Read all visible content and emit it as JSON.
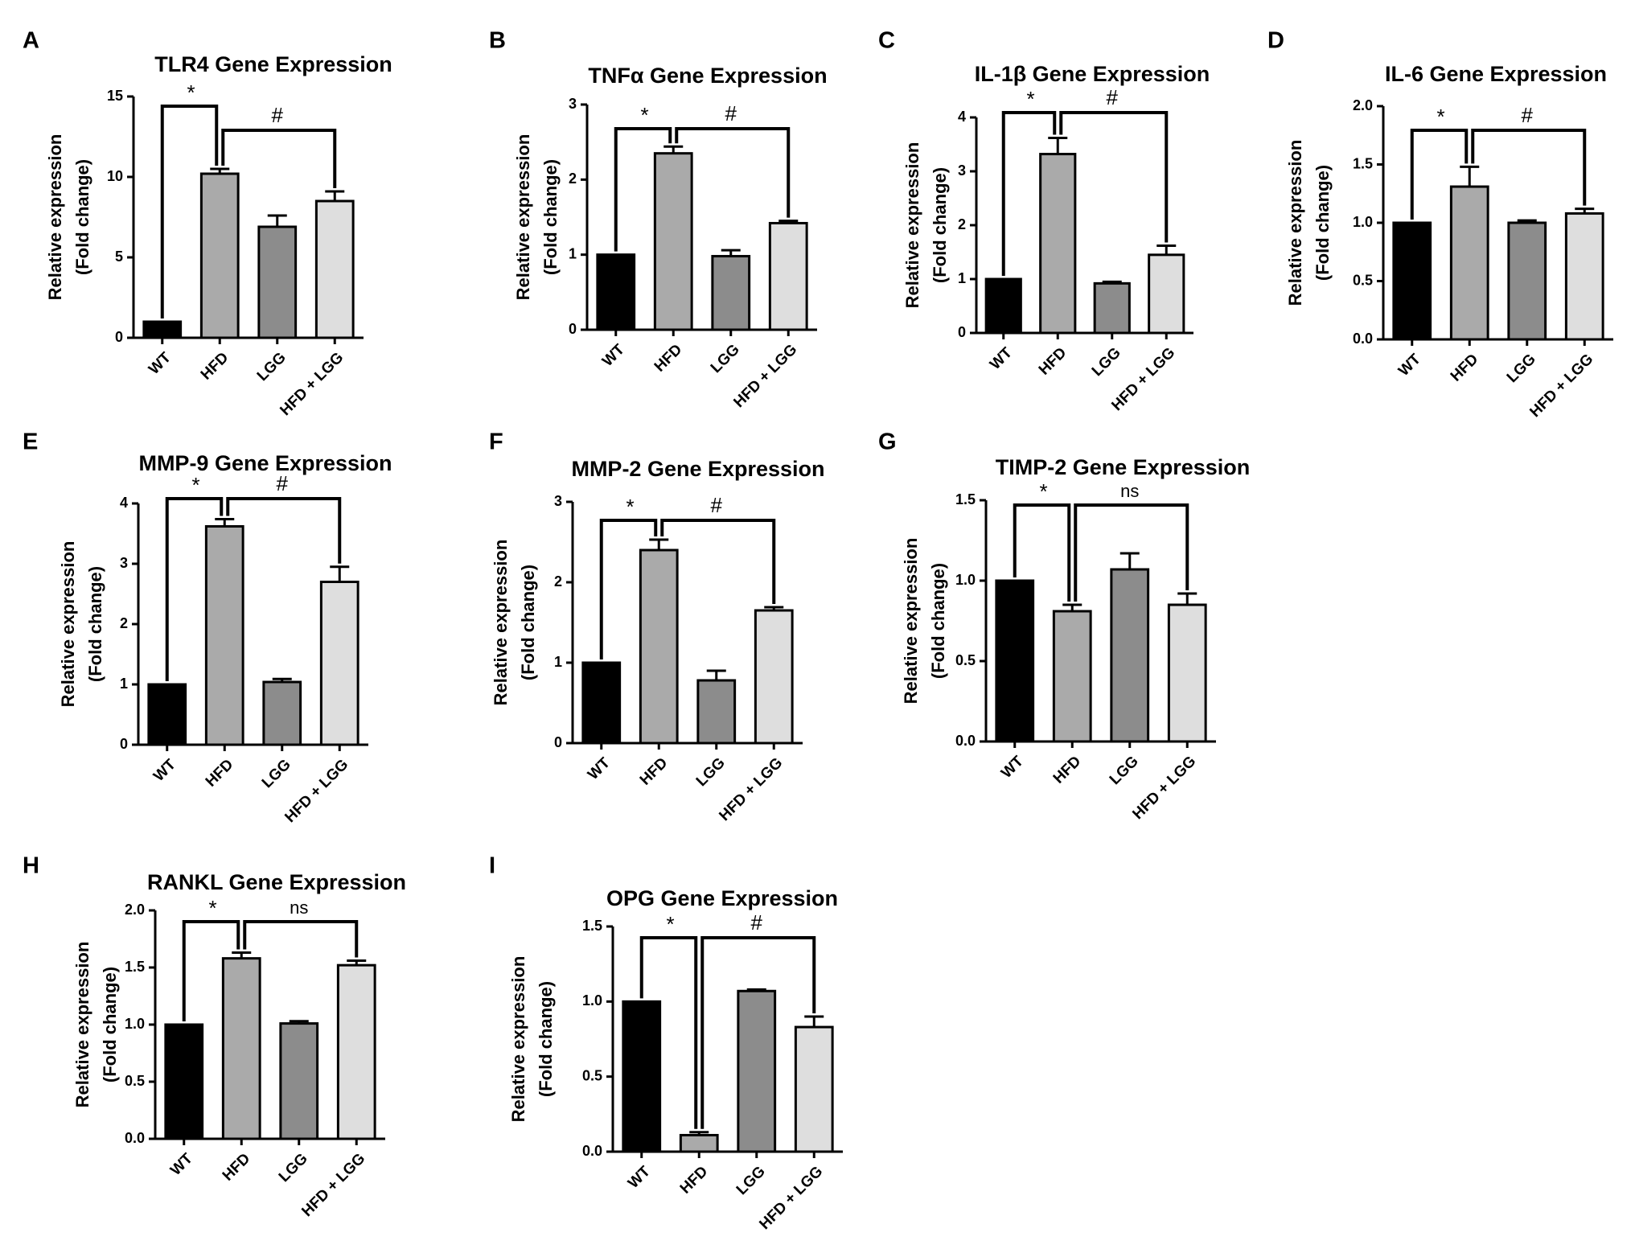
{
  "figure": {
    "categories": [
      "WT",
      "HFD",
      "LGG",
      "HFD + LGG"
    ],
    "bar_colors": [
      "#000000",
      "#aaaaaa",
      "#8c8c8c",
      "#dedede"
    ]
  },
  "chart_data": [
    {
      "panel": "A",
      "type": "bar",
      "title": "TLR4 Gene Expression",
      "ylabel": [
        "Relative expression",
        "(Fold change)"
      ],
      "categories": [
        "WT",
        "HFD",
        "LGG",
        "HFD + LGG"
      ],
      "values": [
        1.0,
        10.2,
        6.9,
        8.5
      ],
      "errors": [
        0,
        0.3,
        0.7,
        0.6
      ],
      "ylim": [
        0,
        15
      ],
      "yticks": [
        "0",
        "5",
        "10",
        "15"
      ],
      "annotations": [
        "*",
        "#"
      ]
    },
    {
      "panel": "B",
      "type": "bar",
      "title": "TNFα Gene Expression",
      "ylabel": [
        "Relative expression",
        "(Fold change)"
      ],
      "categories": [
        "WT",
        "HFD",
        "LGG",
        "HFD + LGG"
      ],
      "values": [
        1.0,
        2.35,
        0.98,
        1.42
      ],
      "errors": [
        0,
        0.09,
        0.08,
        0.03
      ],
      "ylim": [
        0,
        3
      ],
      "yticks": [
        "0",
        "1",
        "2",
        "3"
      ],
      "annotations": [
        "*",
        "#"
      ]
    },
    {
      "panel": "C",
      "type": "bar",
      "title": "IL-1β Gene Expression",
      "ylabel": [
        "Relative expression",
        "(Fold change)"
      ],
      "categories": [
        "WT",
        "HFD",
        "LGG",
        "HFD + LGG"
      ],
      "values": [
        1.0,
        3.32,
        0.92,
        1.45
      ],
      "errors": [
        0,
        0.3,
        0.03,
        0.17
      ],
      "ylim": [
        0,
        4
      ],
      "yticks": [
        "0",
        "1",
        "2",
        "3",
        "4"
      ],
      "annotations": [
        "*",
        "#"
      ]
    },
    {
      "panel": "D",
      "type": "bar",
      "title": "IL-6 Gene Expression",
      "ylabel": [
        "Relative expression",
        "(Fold change)"
      ],
      "categories": [
        "WT",
        "HFD",
        "LGG",
        "HFD + LGG"
      ],
      "values": [
        1.0,
        1.31,
        1.0,
        1.08
      ],
      "errors": [
        0,
        0.17,
        0.02,
        0.04
      ],
      "ylim": [
        0,
        2
      ],
      "yticks": [
        "0.0",
        "0.5",
        "1.0",
        "1.5",
        "2.0"
      ],
      "annotations": [
        "*",
        "#"
      ]
    },
    {
      "panel": "E",
      "type": "bar",
      "title": "MMP-9 Gene Expression",
      "ylabel": [
        "Relative expression",
        "(Fold change)"
      ],
      "categories": [
        "WT",
        "HFD",
        "LGG",
        "HFD + LGG"
      ],
      "values": [
        1.0,
        3.62,
        1.04,
        2.7
      ],
      "errors": [
        0,
        0.12,
        0.05,
        0.25
      ],
      "ylim": [
        0,
        4
      ],
      "yticks": [
        "0",
        "1",
        "2",
        "3",
        "4"
      ],
      "annotations": [
        "*",
        "#"
      ]
    },
    {
      "panel": "F",
      "type": "bar",
      "title": "MMP-2 Gene Expression",
      "ylabel": [
        "Relative expression",
        "(Fold change)"
      ],
      "categories": [
        "WT",
        "HFD",
        "LGG",
        "HFD + LGG"
      ],
      "values": [
        1.0,
        2.4,
        0.78,
        1.65
      ],
      "errors": [
        0,
        0.13,
        0.12,
        0.04
      ],
      "ylim": [
        0,
        3
      ],
      "yticks": [
        "0",
        "1",
        "2",
        "3"
      ],
      "annotations": [
        "*",
        "#"
      ]
    },
    {
      "panel": "G",
      "type": "bar",
      "title": "TIMP-2 Gene Expression",
      "ylabel": [
        "Relative expression",
        "(Fold change)"
      ],
      "categories": [
        "WT",
        "HFD",
        "LGG",
        "HFD + LGG"
      ],
      "values": [
        1.0,
        0.81,
        1.07,
        0.85
      ],
      "errors": [
        0,
        0.04,
        0.1,
        0.07
      ],
      "ylim": [
        0,
        1.5
      ],
      "yticks": [
        "0.0",
        "0.5",
        "1.0",
        "1.5"
      ],
      "annotations": [
        "*",
        "ns"
      ]
    },
    {
      "panel": "H",
      "type": "bar",
      "title": "RANKL Gene Expression",
      "ylabel": [
        "Relative expression",
        "(Fold change)"
      ],
      "categories": [
        "WT",
        "HFD",
        "LGG",
        "HFD + LGG"
      ],
      "values": [
        1.0,
        1.58,
        1.01,
        1.52
      ],
      "errors": [
        0,
        0.05,
        0.02,
        0.04
      ],
      "ylim": [
        0,
        2
      ],
      "yticks": [
        "0.0",
        "0.5",
        "1.0",
        "1.5",
        "2.0"
      ],
      "annotations": [
        "*",
        "ns"
      ]
    },
    {
      "panel": "I",
      "type": "bar",
      "title": "OPG Gene Expression",
      "ylabel": [
        "Relative expression",
        "(Fold change)"
      ],
      "categories": [
        "WT",
        "HFD",
        "LGG",
        "HFD + LGG"
      ],
      "values": [
        1.0,
        0.11,
        1.07,
        0.83
      ],
      "errors": [
        0,
        0.02,
        0.01,
        0.07
      ],
      "ylim": [
        0,
        1.5
      ],
      "yticks": [
        "0.0",
        "0.5",
        "1.0",
        "1.5"
      ],
      "annotations": [
        "*",
        "#"
      ]
    }
  ]
}
